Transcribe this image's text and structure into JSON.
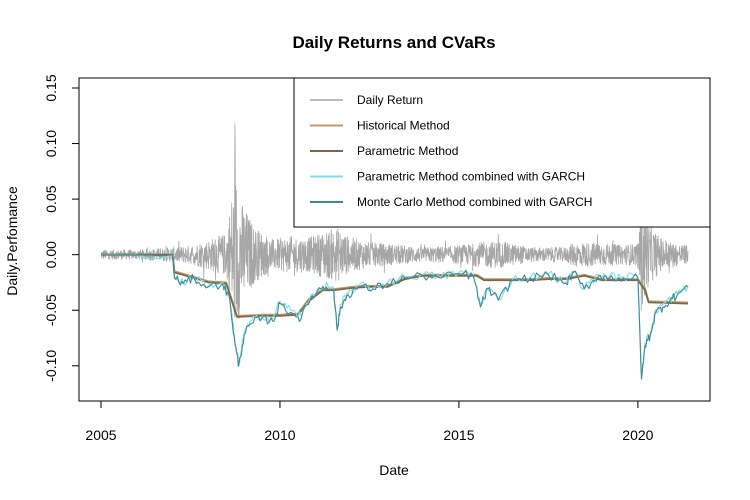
{
  "chart_data": {
    "type": "line",
    "title": "Daily Returns and CVaRs",
    "xlabel": "Date",
    "ylabel": "Daily.Perfomance",
    "xlim": [
      2005.0,
      2021.4
    ],
    "ylim": [
      -0.12,
      0.15
    ],
    "x_ticks": [
      2005,
      2010,
      2015,
      2020
    ],
    "x_tick_labels": [
      "2005",
      "2010",
      "2015",
      "2020"
    ],
    "y_ticks": [
      -0.1,
      -0.05,
      0.0,
      0.05,
      0.1,
      0.15
    ],
    "y_tick_labels": [
      "-0.10",
      "-0.05",
      "0.00",
      "0.05",
      "0.10",
      "0.15"
    ],
    "legend_position": "top-right",
    "grid": false,
    "series": [
      {
        "name": "Daily Return",
        "color": "#a6a6a6",
        "kind": "noisy-return",
        "x": [
          2005.0,
          2006.0,
          2007.0,
          2007.5,
          2008.0,
          2008.5,
          2008.75,
          2008.9,
          2009.3,
          2009.8,
          2010.3,
          2010.8,
          2011.1,
          2011.6,
          2011.9,
          2012.5,
          2013.0,
          2014.0,
          2015.0,
          2015.6,
          2016.1,
          2017.0,
          2018.0,
          2018.2,
          2018.9,
          2019.5,
          2020.0,
          2020.1,
          2020.3,
          2020.6,
          2021.0,
          2021.4
        ],
        "amplitude": [
          0.008,
          0.008,
          0.012,
          0.015,
          0.025,
          0.035,
          0.14,
          0.09,
          0.045,
          0.025,
          0.03,
          0.028,
          0.035,
          0.045,
          0.03,
          0.02,
          0.018,
          0.012,
          0.015,
          0.02,
          0.022,
          0.012,
          0.012,
          0.02,
          0.02,
          0.016,
          0.018,
          0.1,
          0.05,
          0.03,
          0.02,
          0.015
        ]
      },
      {
        "name": "Historical Method",
        "color": "#c49a6c",
        "x": [
          2005.0,
          2007.0,
          2007.05,
          2007.6,
          2008.0,
          2008.5,
          2008.7,
          2008.8,
          2009.5,
          2010.0,
          2010.5,
          2010.8,
          2011.2,
          2011.5,
          2012.0,
          2012.5,
          2013.0,
          2013.5,
          2014.0,
          2015.0,
          2015.5,
          2015.7,
          2016.5,
          2017.0,
          2017.5,
          2018.0,
          2018.5,
          2019.0,
          2019.5,
          2020.0,
          2020.2,
          2020.3,
          2021.4
        ],
        "values": [
          0.0,
          0.0,
          -0.015,
          -0.02,
          -0.024,
          -0.025,
          -0.045,
          -0.055,
          -0.054,
          -0.054,
          -0.053,
          -0.04,
          -0.031,
          -0.031,
          -0.029,
          -0.028,
          -0.028,
          -0.021,
          -0.018,
          -0.018,
          -0.018,
          -0.022,
          -0.022,
          -0.022,
          -0.021,
          -0.021,
          -0.018,
          -0.022,
          -0.022,
          -0.022,
          -0.03,
          -0.042,
          -0.043
        ]
      },
      {
        "name": "Parametric Method",
        "color": "#7b6a4a",
        "x": [
          2005.0,
          2007.0,
          2007.05,
          2007.6,
          2008.0,
          2008.5,
          2008.7,
          2008.8,
          2009.5,
          2010.0,
          2010.5,
          2010.8,
          2011.2,
          2011.5,
          2012.0,
          2012.5,
          2013.0,
          2013.5,
          2014.0,
          2015.0,
          2015.5,
          2015.7,
          2016.5,
          2017.0,
          2017.5,
          2018.0,
          2018.5,
          2019.0,
          2019.5,
          2020.0,
          2020.2,
          2020.3,
          2021.4
        ],
        "values": [
          0.0,
          0.0,
          -0.016,
          -0.021,
          -0.025,
          -0.026,
          -0.046,
          -0.056,
          -0.055,
          -0.055,
          -0.054,
          -0.042,
          -0.032,
          -0.032,
          -0.03,
          -0.029,
          -0.029,
          -0.022,
          -0.019,
          -0.019,
          -0.019,
          -0.023,
          -0.023,
          -0.023,
          -0.022,
          -0.022,
          -0.019,
          -0.023,
          -0.023,
          -0.023,
          -0.032,
          -0.043,
          -0.044
        ]
      },
      {
        "name": "Parametric Method combined with GARCH",
        "color": "#7fdde9",
        "x": [
          2005.0,
          2007.0,
          2007.05,
          2007.3,
          2007.6,
          2008.0,
          2008.4,
          2008.6,
          2008.75,
          2008.85,
          2009.0,
          2009.2,
          2009.5,
          2009.8,
          2010.0,
          2010.3,
          2010.6,
          2010.9,
          2011.2,
          2011.5,
          2011.6,
          2011.7,
          2011.9,
          2012.2,
          2012.6,
          2013.0,
          2013.5,
          2014.0,
          2014.5,
          2015.0,
          2015.4,
          2015.6,
          2015.8,
          2016.1,
          2016.5,
          2017.0,
          2017.5,
          2018.0,
          2018.2,
          2018.5,
          2018.9,
          2019.2,
          2019.6,
          2020.0,
          2020.1,
          2020.2,
          2020.35,
          2020.5,
          2020.7,
          2020.9,
          2021.1,
          2021.4
        ],
        "values": [
          0.0,
          0.0,
          -0.02,
          -0.025,
          -0.02,
          -0.028,
          -0.025,
          -0.04,
          -0.08,
          -0.098,
          -0.07,
          -0.06,
          -0.055,
          -0.058,
          -0.042,
          -0.05,
          -0.055,
          -0.035,
          -0.028,
          -0.03,
          -0.066,
          -0.045,
          -0.035,
          -0.028,
          -0.03,
          -0.025,
          -0.02,
          -0.018,
          -0.02,
          -0.016,
          -0.018,
          -0.045,
          -0.03,
          -0.04,
          -0.022,
          -0.02,
          -0.017,
          -0.025,
          -0.015,
          -0.03,
          -0.018,
          -0.02,
          -0.02,
          -0.02,
          -0.11,
          -0.08,
          -0.07,
          -0.05,
          -0.045,
          -0.04,
          -0.035,
          -0.028
        ]
      },
      {
        "name": "Monte Carlo Method combined with GARCH",
        "color": "#3d8a94",
        "x": [
          2005.0,
          2007.0,
          2007.05,
          2007.3,
          2007.6,
          2008.0,
          2008.4,
          2008.6,
          2008.75,
          2008.85,
          2009.0,
          2009.2,
          2009.5,
          2009.8,
          2010.0,
          2010.3,
          2010.6,
          2010.9,
          2011.2,
          2011.5,
          2011.6,
          2011.7,
          2011.9,
          2012.2,
          2012.6,
          2013.0,
          2013.5,
          2014.0,
          2014.5,
          2015.0,
          2015.4,
          2015.6,
          2015.8,
          2016.1,
          2016.5,
          2017.0,
          2017.5,
          2018.0,
          2018.2,
          2018.5,
          2018.9,
          2019.2,
          2019.6,
          2020.0,
          2020.1,
          2020.2,
          2020.35,
          2020.5,
          2020.7,
          2020.9,
          2021.1,
          2021.4
        ],
        "values": [
          0.0,
          0.0,
          -0.021,
          -0.026,
          -0.021,
          -0.029,
          -0.026,
          -0.041,
          -0.082,
          -0.1,
          -0.072,
          -0.062,
          -0.057,
          -0.06,
          -0.044,
          -0.052,
          -0.057,
          -0.037,
          -0.029,
          -0.031,
          -0.068,
          -0.047,
          -0.036,
          -0.029,
          -0.031,
          -0.026,
          -0.021,
          -0.019,
          -0.021,
          -0.017,
          -0.019,
          -0.047,
          -0.031,
          -0.041,
          -0.023,
          -0.021,
          -0.018,
          -0.026,
          -0.016,
          -0.031,
          -0.019,
          -0.021,
          -0.021,
          -0.021,
          -0.112,
          -0.082,
          -0.072,
          -0.052,
          -0.047,
          -0.041,
          -0.036,
          -0.029
        ]
      }
    ]
  }
}
